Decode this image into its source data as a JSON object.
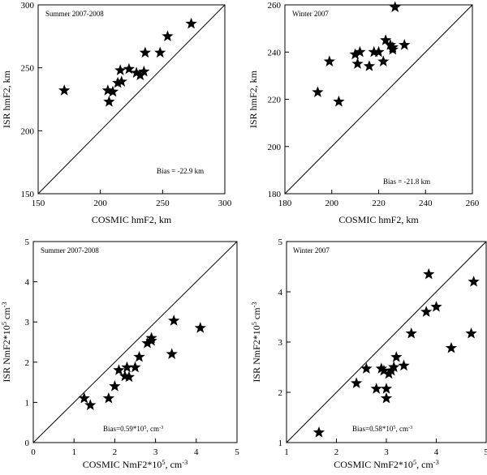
{
  "chart_data": [
    {
      "type": "scatter",
      "title": "Summer 2007-2008",
      "xlabel": "COSMIC hmF2, km",
      "ylabel": "ISR hmF2, km",
      "xlim": [
        150,
        300
      ],
      "ylim": [
        150,
        300
      ],
      "xticks": [
        "150",
        "200",
        "250",
        "300"
      ],
      "yticks": [
        "150",
        "200",
        "250",
        "300"
      ],
      "annotation": "Bias = -22.9 km",
      "diagonal": true,
      "x": [
        171,
        206,
        207,
        210,
        214,
        216,
        217,
        223,
        229,
        232,
        235,
        236,
        248,
        254,
        273
      ],
      "y": [
        232,
        232,
        223,
        231,
        238,
        248,
        239,
        249,
        246,
        244,
        247,
        262,
        262,
        275,
        285
      ]
    },
    {
      "type": "scatter",
      "title": "Winter 2007",
      "xlabel": "COSMIC hmF2, km",
      "ylabel": "ISR hmF2, km",
      "xlim": [
        180,
        260
      ],
      "ylim": [
        180,
        260
      ],
      "xticks": [
        "180",
        "200",
        "220",
        "240",
        "260"
      ],
      "yticks": [
        "180",
        "200",
        "220",
        "240",
        "260"
      ],
      "annotation": "Bias = -21.8 km",
      "diagonal": true,
      "x": [
        194,
        199,
        203,
        210,
        211,
        212,
        216,
        218,
        220,
        222,
        223,
        225,
        226,
        226,
        227,
        231
      ],
      "y": [
        223,
        236,
        219,
        239,
        235,
        240,
        234,
        240,
        240,
        236,
        245,
        243,
        241,
        242,
        259,
        243
      ]
    },
    {
      "type": "scatter",
      "title": "Summer 2007-2008",
      "xlabel": "COSMIC NmF2*10⁵, cm⁻³",
      "ylabel": "ISR NmF2*10⁵ cm⁻³",
      "xlim": [
        0,
        5
      ],
      "ylim": [
        0,
        5
      ],
      "xticks": [
        "0",
        "1",
        "2",
        "3",
        "4",
        "5"
      ],
      "yticks": [
        "0",
        "1",
        "2",
        "3",
        "4",
        "5"
      ],
      "annotation": "Bias=0.59*10⁵, cm⁻³",
      "diagonal": true,
      "x": [
        1.25,
        1.4,
        1.85,
        2.0,
        2.1,
        2.25,
        2.3,
        2.35,
        2.5,
        2.6,
        2.8,
        2.9,
        2.9,
        3.4,
        3.45,
        4.1
      ],
      "y": [
        1.1,
        0.93,
        1.1,
        1.4,
        1.8,
        1.65,
        1.87,
        1.63,
        1.87,
        2.13,
        2.47,
        2.6,
        2.53,
        2.2,
        3.03,
        2.85
      ]
    },
    {
      "type": "scatter",
      "title": "Winter 2007",
      "xlabel": "COSMIC NmF2*10⁵, cm⁻³",
      "ylabel": "ISR NmF2*10⁵ cm⁻³",
      "xlim": [
        1,
        5
      ],
      "ylim": [
        1,
        5
      ],
      "xticks": [
        "1",
        "2",
        "3",
        "4",
        "5"
      ],
      "yticks": [
        "1",
        "2",
        "3",
        "4",
        "5"
      ],
      "annotation": "Bias=0.58*10⁵, cm⁻³",
      "diagonal": true,
      "x": [
        1.65,
        2.4,
        2.6,
        2.8,
        2.9,
        2.95,
        3.0,
        3.0,
        3.05,
        3.1,
        3.15,
        3.2,
        3.35,
        3.5,
        3.8,
        3.85,
        4.0,
        4.3,
        4.7,
        4.75
      ],
      "y": [
        1.2,
        2.18,
        2.47,
        2.07,
        2.47,
        2.43,
        1.88,
        2.07,
        2.37,
        2.43,
        2.5,
        2.7,
        2.53,
        3.17,
        3.6,
        4.35,
        3.7,
        2.88,
        3.17,
        4.2
      ]
    }
  ]
}
